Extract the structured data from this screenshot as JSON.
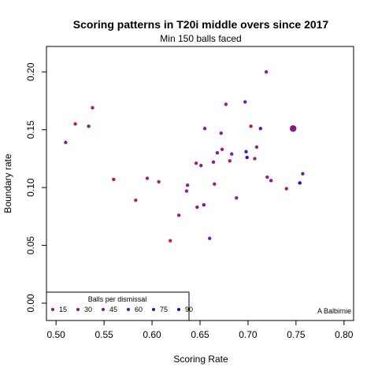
{
  "chart_data": {
    "type": "scatter",
    "title": "Scoring patterns in T20i middle overs since 2017",
    "subtitle": "Min 150 balls faced",
    "xlabel": "Scoring Rate",
    "ylabel": "Boundary rate",
    "xlim": [
      0.49,
      0.81
    ],
    "ylim": [
      -0.015,
      0.222
    ],
    "x_ticks": [
      0.5,
      0.55,
      0.6,
      0.65,
      0.7,
      0.75,
      0.8
    ],
    "x_tick_labels": [
      "0.50",
      "0.55",
      "0.60",
      "0.65",
      "0.70",
      "0.75",
      "0.80"
    ],
    "y_ticks": [
      0.0,
      0.05,
      0.1,
      0.15,
      0.2
    ],
    "y_tick_labels": [
      "0.00",
      "0.05",
      "0.10",
      "0.15",
      "0.20"
    ],
    "grid": false,
    "color_scale": {
      "low": "#C2185B",
      "mid": "#7B1FA2",
      "high": "#0000FF"
    },
    "legend": {
      "title": "Balls per dismissal",
      "placement": "bottom-left",
      "entries": [
        {
          "label": "15",
          "color": "#B0135A"
        },
        {
          "label": "30",
          "color": "#8E1680"
        },
        {
          "label": "45",
          "color": "#6E1799"
        },
        {
          "label": "60",
          "color": "#4E12B5"
        },
        {
          "label": "75",
          "color": "#2F0BD0"
        },
        {
          "label": "90",
          "color": "#0F05EC"
        }
      ]
    },
    "highlight": {
      "label": "A Balbirnie",
      "x": 0.747,
      "y": 0.151
    },
    "points": [
      {
        "x": 0.51,
        "y": 0.139,
        "bpd": 45
      },
      {
        "x": 0.52,
        "y": 0.155,
        "bpd": 20
      },
      {
        "x": 0.534,
        "y": 0.153,
        "bpd": 40
      },
      {
        "x": 0.538,
        "y": 0.169,
        "bpd": 20
      },
      {
        "x": 0.56,
        "y": 0.107,
        "bpd": 30
      },
      {
        "x": 0.583,
        "y": 0.089,
        "bpd": 18
      },
      {
        "x": 0.595,
        "y": 0.108,
        "bpd": 25
      },
      {
        "x": 0.607,
        "y": 0.105,
        "bpd": 20
      },
      {
        "x": 0.619,
        "y": 0.054,
        "bpd": 18
      },
      {
        "x": 0.628,
        "y": 0.076,
        "bpd": 30
      },
      {
        "x": 0.636,
        "y": 0.097,
        "bpd": 30
      },
      {
        "x": 0.637,
        "y": 0.102,
        "bpd": 35
      },
      {
        "x": 0.646,
        "y": 0.121,
        "bpd": 25
      },
      {
        "x": 0.647,
        "y": 0.083,
        "bpd": 30
      },
      {
        "x": 0.651,
        "y": 0.119,
        "bpd": 35
      },
      {
        "x": 0.654,
        "y": 0.085,
        "bpd": 50
      },
      {
        "x": 0.655,
        "y": 0.151,
        "bpd": 40
      },
      {
        "x": 0.66,
        "y": 0.056,
        "bpd": 50
      },
      {
        "x": 0.664,
        "y": 0.122,
        "bpd": 40
      },
      {
        "x": 0.665,
        "y": 0.103,
        "bpd": 35
      },
      {
        "x": 0.668,
        "y": 0.13,
        "bpd": 45
      },
      {
        "x": 0.672,
        "y": 0.147,
        "bpd": 35
      },
      {
        "x": 0.673,
        "y": 0.133,
        "bpd": 30
      },
      {
        "x": 0.677,
        "y": 0.172,
        "bpd": 30
      },
      {
        "x": 0.681,
        "y": 0.123,
        "bpd": 25
      },
      {
        "x": 0.683,
        "y": 0.129,
        "bpd": 45
      },
      {
        "x": 0.688,
        "y": 0.091,
        "bpd": 40
      },
      {
        "x": 0.697,
        "y": 0.174,
        "bpd": 50
      },
      {
        "x": 0.698,
        "y": 0.131,
        "bpd": 60
      },
      {
        "x": 0.699,
        "y": 0.126,
        "bpd": 75
      },
      {
        "x": 0.703,
        "y": 0.153,
        "bpd": 30
      },
      {
        "x": 0.707,
        "y": 0.125,
        "bpd": 25
      },
      {
        "x": 0.709,
        "y": 0.135,
        "bpd": 30
      },
      {
        "x": 0.713,
        "y": 0.151,
        "bpd": 60
      },
      {
        "x": 0.719,
        "y": 0.2,
        "bpd": 40
      },
      {
        "x": 0.72,
        "y": 0.109,
        "bpd": 30
      },
      {
        "x": 0.724,
        "y": 0.106,
        "bpd": 45
      },
      {
        "x": 0.74,
        "y": 0.099,
        "bpd": 25
      },
      {
        "x": 0.754,
        "y": 0.104,
        "bpd": 80
      },
      {
        "x": 0.757,
        "y": 0.112,
        "bpd": 50
      }
    ]
  }
}
